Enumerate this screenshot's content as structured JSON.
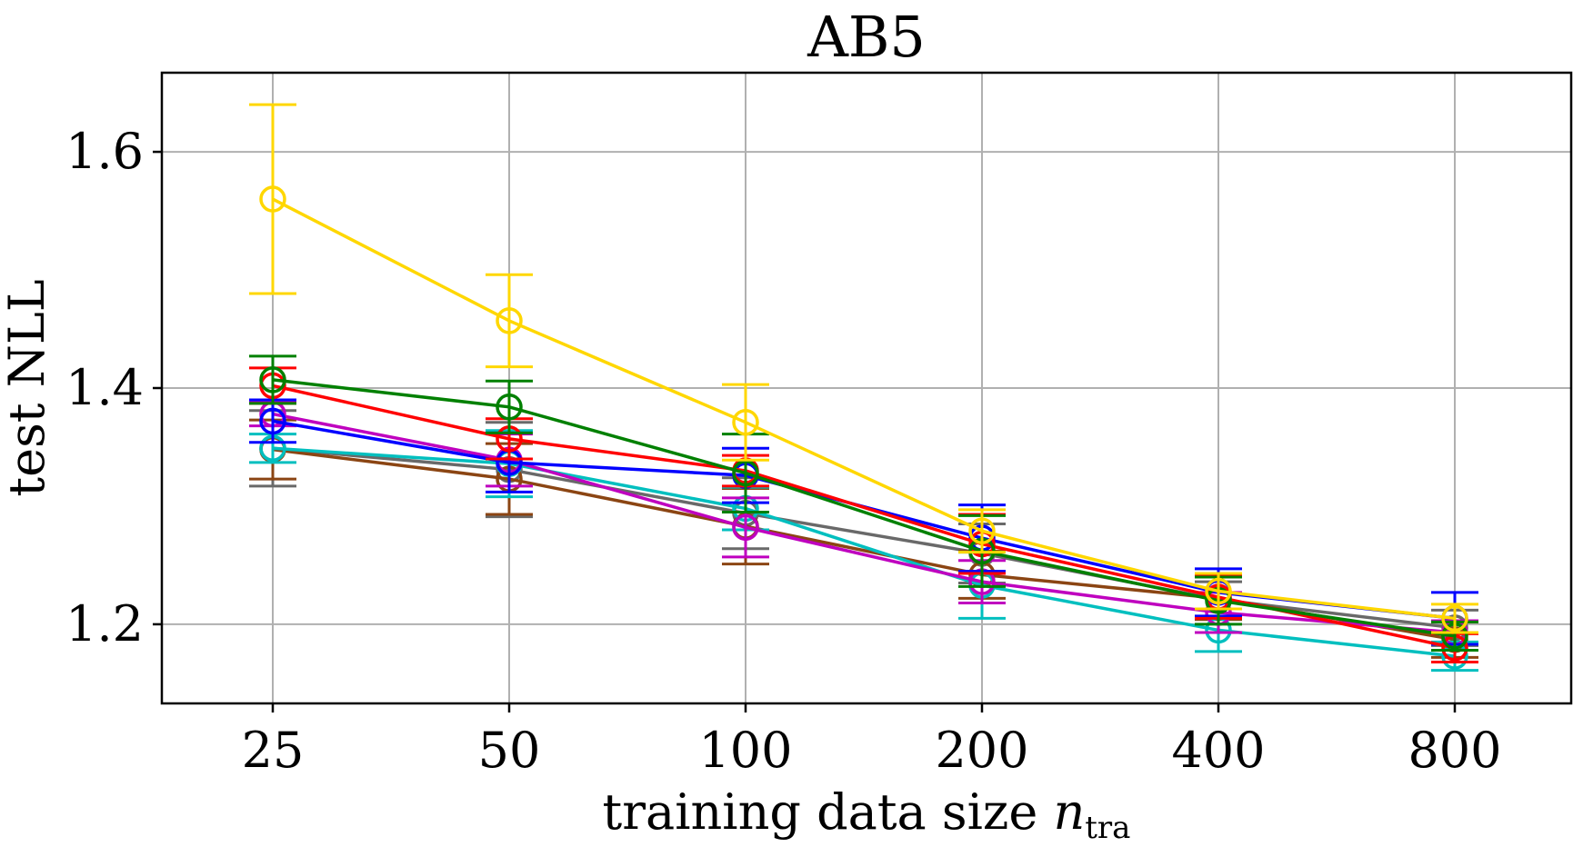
{
  "chart_data": {
    "type": "line",
    "title": "AB5",
    "xlabel_main": "training data size ",
    "xlabel_var": "n",
    "xlabel_sub": "tra",
    "ylabel": "test NLL",
    "categories": [
      "25",
      "50",
      "100",
      "200",
      "400",
      "800"
    ],
    "y_ticks": [
      1.2,
      1.4,
      1.6
    ],
    "y_tick_labels": [
      "1.2",
      "1.4",
      "1.6"
    ],
    "ylim": [
      1.133,
      1.667
    ],
    "grid": true,
    "series": [
      {
        "name": "yellow",
        "color": "#ffd700",
        "values": [
          1.56,
          1.457,
          1.371,
          1.279,
          1.228,
          1.205
        ],
        "err": [
          0.08,
          0.039,
          0.032,
          0.018,
          0.015,
          0.012
        ]
      },
      {
        "name": "green",
        "color": "#008000",
        "values": [
          1.407,
          1.384,
          1.328,
          1.262,
          1.22,
          1.19
        ],
        "err": [
          0.02,
          0.022,
          0.033,
          0.03,
          0.02,
          0.012
        ]
      },
      {
        "name": "red",
        "color": "#ff0000",
        "values": [
          1.402,
          1.357,
          1.33,
          1.268,
          1.223,
          1.18
        ],
        "err": [
          0.015,
          0.017,
          0.013,
          0.025,
          0.018,
          0.012
        ]
      },
      {
        "name": "blue",
        "color": "#0000ff",
        "values": [
          1.372,
          1.337,
          1.326,
          1.273,
          1.227,
          1.205
        ],
        "err": [
          0.018,
          0.025,
          0.023,
          0.028,
          0.02,
          0.022
        ]
      },
      {
        "name": "magenta",
        "color": "#bf00bf",
        "values": [
          1.378,
          1.339,
          1.282,
          1.236,
          1.21,
          1.193
        ],
        "err": [
          0.01,
          0.022,
          0.025,
          0.018,
          0.017,
          0.01
        ]
      },
      {
        "name": "cyan",
        "color": "#00bfbf",
        "values": [
          1.349,
          1.336,
          1.298,
          1.233,
          1.195,
          1.173
        ],
        "err": [
          0.012,
          0.028,
          0.018,
          0.028,
          0.018,
          0.012
        ]
      },
      {
        "name": "brown",
        "color": "#8b4513",
        "values": [
          1.348,
          1.323,
          1.283,
          1.242,
          1.222,
          1.187
        ],
        "err": [
          0.025,
          0.03,
          0.032,
          0.02,
          0.018,
          0.015
        ]
      },
      {
        "name": "gray",
        "color": "#696969",
        "values": [
          1.349,
          1.331,
          1.294,
          1.26,
          1.221,
          1.197
        ],
        "err": [
          0.032,
          0.04,
          0.03,
          0.025,
          0.015,
          0.015
        ]
      }
    ]
  }
}
